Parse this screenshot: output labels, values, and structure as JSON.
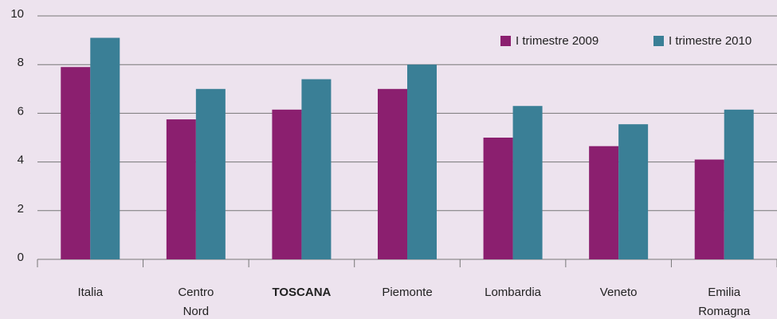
{
  "chart_data": {
    "type": "bar",
    "categories": [
      "Italia",
      "Centro Nord",
      "TOSCANA",
      "Piemonte",
      "Lombardia",
      "Veneto",
      "Emilia Romagna"
    ],
    "category_colors": [
      "#222222",
      "#222222",
      "#8b1f6f",
      "#222222",
      "#222222",
      "#222222",
      "#222222"
    ],
    "series": [
      {
        "name": "I trimestre 2009",
        "color": "#8b1f6f",
        "values": [
          7.9,
          5.75,
          6.15,
          7.0,
          5.0,
          4.65,
          4.1
        ]
      },
      {
        "name": "I trimestre 2010",
        "color": "#3a7f96",
        "values": [
          9.1,
          7.0,
          7.4,
          8.0,
          6.3,
          5.55,
          6.15
        ]
      }
    ],
    "ylim": [
      0,
      10
    ],
    "yticks": [
      0,
      2,
      4,
      6,
      8,
      10
    ],
    "grid": true,
    "legend": "top-right"
  }
}
